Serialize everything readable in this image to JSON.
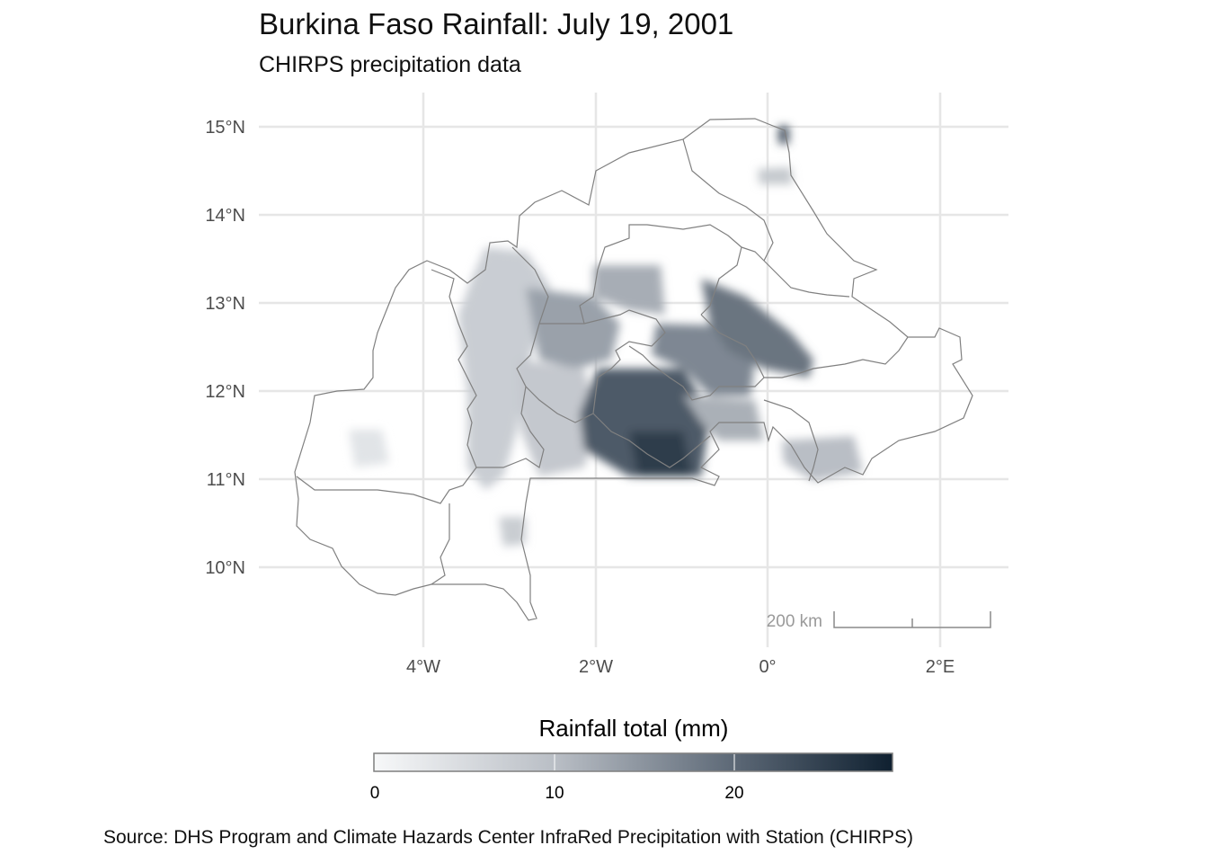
{
  "title": "Burkina Faso Rainfall: July 19, 2001",
  "subtitle": "CHIRPS precipitation data",
  "axes": {
    "y_labels": [
      "15°N",
      "14°N",
      "13°N",
      "12°N",
      "11°N",
      "10°N"
    ],
    "x_labels": [
      "4°W",
      "2°W",
      "0°",
      "2°E"
    ]
  },
  "scale_bar": {
    "label": "200 km"
  },
  "legend": {
    "title": "Rainfall total (mm)",
    "ticks": [
      "0",
      "10",
      "20"
    ],
    "color_low": "#f5f6f7",
    "color_high": "#0f2030"
  },
  "caption": "Source: DHS Program and Climate Hazards Center InfraRed Precipitation with Station (CHIRPS)"
}
